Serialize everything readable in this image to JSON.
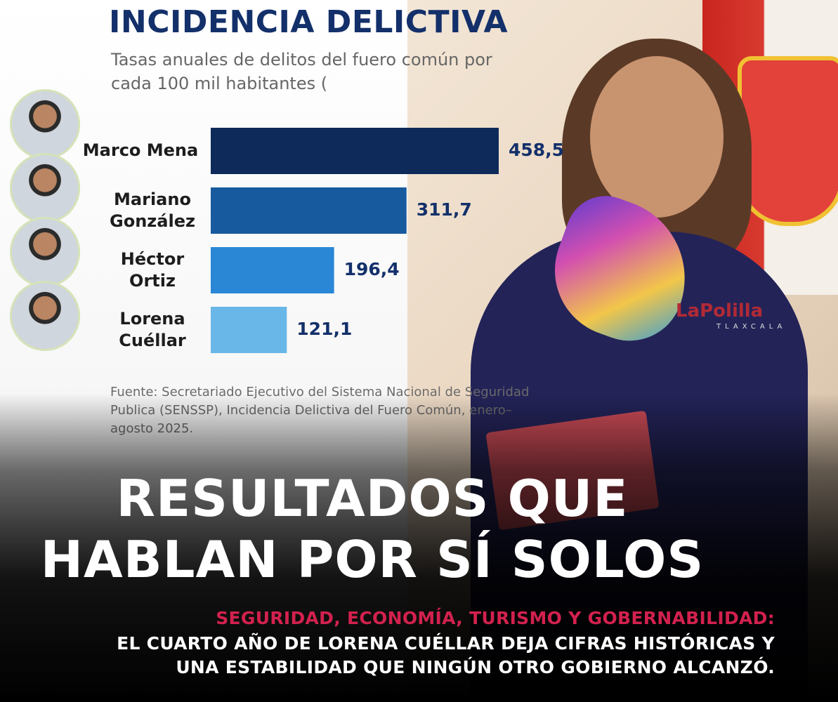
{
  "chart_data": {
    "type": "bar",
    "orientation": "horizontal",
    "title": "INCIDENCIA DELICTIVA",
    "subtitle": "Tasas anuales de delitos del fuero común por cada 100 mil habitantes (",
    "categories": [
      "Marco Mena",
      "Mariano González",
      "Héctor Ortiz",
      "Lorena Cuéllar"
    ],
    "values": [
      458.5,
      311.7,
      196.4,
      121.1
    ],
    "value_labels": [
      "458,5",
      "311,7",
      "196,4",
      "121,1"
    ],
    "colors": [
      "#0e2a5a",
      "#175a9e",
      "#2a87d6",
      "#69b6e8"
    ],
    "source": "Fuente: Secretariado Ejecutivo del Sistema Nacional de Seguridad Publica (SENSSP), Incidencia Delictiva del Fuero Común, enero–agosto 2025."
  },
  "watermark": {
    "brand": "LaPolilla",
    "place": "TLAXCALA"
  },
  "headline": [
    "RESULTADOS QUE",
    "HABLAN POR SÍ SOLOS"
  ],
  "tagline": {
    "highlight": "SEGURIDAD, ECONOMÍA, TURISMO Y GOBERNABILIDAD:",
    "lines": [
      "EL CUARTO AÑO DE LORENA CUÉLLAR DEJA CIFRAS HISTÓRICAS Y",
      "UNA ESTABILIDAD QUE NINGÚN OTRO GOBIERNO ALCANZÓ."
    ]
  }
}
